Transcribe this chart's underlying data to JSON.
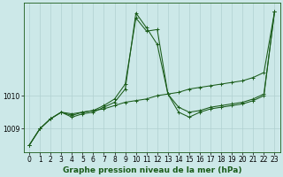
{
  "background_color": "#cce8e8",
  "line_color": "#1a5c1a",
  "grid_color": "#b0d0d0",
  "title": "Graphe pression niveau de la mer (hPa)",
  "ylim": [
    1008.3,
    1012.8
  ],
  "xlim": [
    -0.5,
    23.5
  ],
  "yticks": [
    1009,
    1010
  ],
  "xticks": [
    0,
    1,
    2,
    3,
    4,
    5,
    6,
    7,
    8,
    9,
    10,
    11,
    12,
    13,
    14,
    15,
    16,
    17,
    18,
    19,
    20,
    21,
    22,
    23
  ],
  "series1_x": [
    0,
    1,
    2,
    3,
    4,
    5,
    6,
    7,
    8,
    9,
    10,
    11,
    12,
    13,
    14,
    15,
    16,
    17,
    18,
    19,
    20,
    21,
    22,
    23
  ],
  "series1_y": [
    1008.5,
    1009.0,
    1009.3,
    1009.5,
    1009.45,
    1009.5,
    1009.55,
    1009.6,
    1009.7,
    1009.8,
    1009.85,
    1009.9,
    1010.0,
    1010.05,
    1010.1,
    1010.2,
    1010.25,
    1010.3,
    1010.35,
    1010.4,
    1010.45,
    1010.55,
    1010.7,
    1012.55
  ],
  "series2_x": [
    0,
    1,
    2,
    3,
    4,
    5,
    6,
    7,
    8,
    9,
    10,
    11,
    12,
    13,
    14,
    15,
    16,
    17,
    18,
    19,
    20,
    21,
    22,
    23
  ],
  "series2_y": [
    1008.5,
    1009.0,
    1009.3,
    1009.5,
    1009.4,
    1009.5,
    1009.55,
    1009.7,
    1009.9,
    1010.35,
    1012.35,
    1011.95,
    1012.0,
    1010.05,
    1009.65,
    1009.5,
    1009.55,
    1009.65,
    1009.7,
    1009.75,
    1009.8,
    1009.9,
    1010.05,
    1012.55
  ],
  "series3_x": [
    0,
    1,
    2,
    3,
    4,
    5,
    6,
    7,
    8,
    9,
    10,
    11,
    12,
    13,
    14,
    15,
    16,
    17,
    18,
    19,
    20,
    21,
    22,
    23
  ],
  "series3_y": [
    1008.5,
    1009.0,
    1009.3,
    1009.5,
    1009.35,
    1009.45,
    1009.5,
    1009.65,
    1009.8,
    1010.2,
    1012.5,
    1012.05,
    1011.55,
    1010.05,
    1009.5,
    1009.35,
    1009.5,
    1009.6,
    1009.65,
    1009.7,
    1009.75,
    1009.85,
    1010.0,
    1012.55
  ],
  "title_fontsize": 6.5,
  "tick_fontsize": 5.5
}
